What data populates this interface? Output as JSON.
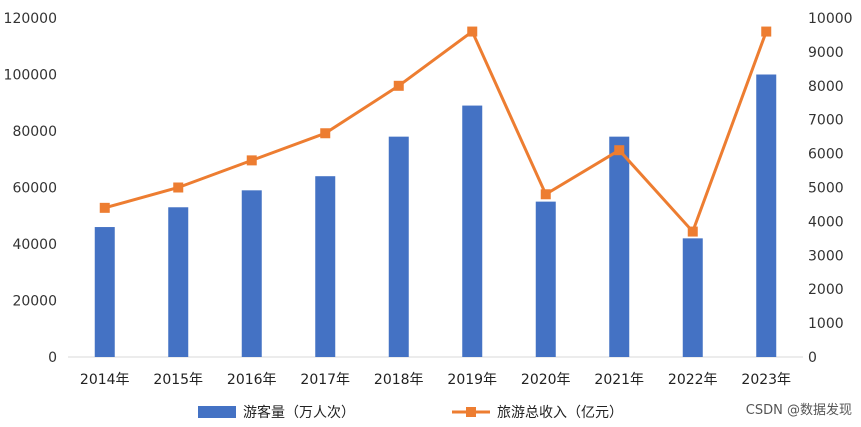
{
  "chart_data": {
    "type": "bar",
    "categories": [
      "2014年",
      "2015年",
      "2016年",
      "2017年",
      "2018年",
      "2019年",
      "2020年",
      "2021年",
      "2022年",
      "2023年"
    ],
    "series": [
      {
        "name": "游客量（万人次）",
        "type": "bar",
        "axis": "left",
        "color": "#4472C4",
        "values": [
          46000,
          53000,
          59000,
          64000,
          78000,
          89000,
          55000,
          78000,
          42000,
          100000
        ]
      },
      {
        "name": "旅游总收入（亿元）",
        "type": "line",
        "axis": "right",
        "color": "#ED7D31",
        "values": [
          4400,
          5000,
          5800,
          6600,
          8000,
          9600,
          4800,
          6100,
          3700,
          9600
        ]
      }
    ],
    "y_left": {
      "lim": [
        0,
        120000
      ],
      "ticks": [
        "0",
        "20000",
        "40000",
        "60000",
        "80000",
        "100000",
        "120000"
      ]
    },
    "y_right": {
      "lim": [
        0,
        10000
      ],
      "ticks": [
        "0",
        "1000",
        "2000",
        "3000",
        "4000",
        "5000",
        "6000",
        "7000",
        "8000",
        "9000",
        "10000"
      ]
    },
    "grid": false,
    "legend_position": "bottom"
  },
  "watermark": "CSDN @数据发现"
}
